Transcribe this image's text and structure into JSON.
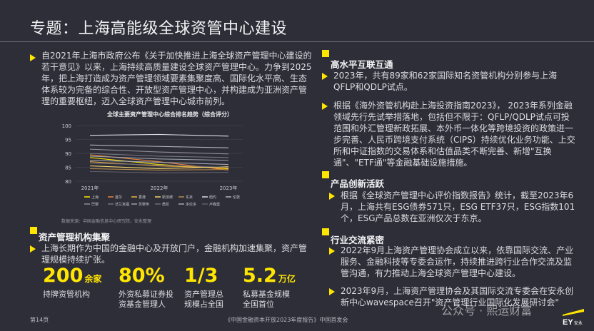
{
  "title": "专题：上海高能级全球资管中心建设",
  "intro": "自2021年上海市政府公布《关于加快推进上海全球资产管理中心建设的若干意见》以来，上海持续高质量建设全球资产管理中心。力争到2025年，把上海打造成为资产管理领域要素集聚度高、国际化水平高、生态体系较为完备的综合性、开放型资产管理中心，并构建成为亚洲资产管理的重要枢纽，迈入全球资产管理中心城市前列。",
  "cluster": {
    "heading": "资产管理机构集聚",
    "text": "上海长期作为中国的金融中心及开放门户，金融机构加速集聚，资产管理规模持续扩张。",
    "stats": [
      {
        "num": "200",
        "unit": "余家",
        "label": "持牌资管机构"
      },
      {
        "num": "80%",
        "unit": "",
        "label": "外资私募证券投资基金管理人"
      },
      {
        "num": "1/3",
        "unit": "",
        "label": "资产管理总规模占全国"
      },
      {
        "num": "5.2",
        "unit": "万亿",
        "label": "私募基金规模全国首位"
      }
    ]
  },
  "connect": {
    "heading": "高水平互联互通",
    "p1": "2023年，共有89家和62家国际知名资管机构分别参与上海QFLP和QDLP试点。",
    "p2": "根据《海外资管机构赴上海投资指南2023》， 2023年系列金融领域先行先试举措落地，包括但不限于：QFLP/QDLP试点可投范围和外汇管理新政拓展、本外币一体化等跨境投资的政策进一步完善、人民币跨境支付系统（CIPS）持续优化业务功能、上交所和中证指数的交易体系和估值品类不断完善、新增\"互换通\"、\"ETF通\"等金融基础设施措施。"
  },
  "product": {
    "heading": "产品创新活跃",
    "p1": "根据《全球资产管理中心评价指数报告》统计，截至2023年6月，上海共有ESG债券571只，ESG ETF37只，ESG指数101个，ESG产品总数在亚洲仅次于东京。"
  },
  "exchange": {
    "heading": "行业交流紧密",
    "p1": "2022年9月上海资产管理协会成立以来，依靠国际交流、产业服务、金融科技等专委会运作，持续推进跨行业合作交流及监管沟通，有力推动上海全球资产管理中心建设。",
    "p2": "2023年9月，上海资产管理协会及其国际交流专委会在安永创新中心wavespace召开\"资产管理行业国际化发展研讨会\""
  },
  "chart_data": {
    "type": "line",
    "title": "全球主要资产管理中心综合排名趋势（综合评分）",
    "categories": [
      "2021年",
      "2022年",
      "2023年"
    ],
    "ylim": [
      80,
      100
    ],
    "yticks": [
      80,
      85,
      90,
      95,
      100
    ],
    "grid": true,
    "legend_position": "bottom",
    "series": [
      {
        "name": "上海",
        "color": "#ffe600",
        "values": [
          88.5,
          86.0,
          84.5
        ]
      },
      {
        "name": "首尔",
        "color": "#e8823a",
        "values": [
          89.5,
          87.0,
          84.0
        ]
      },
      {
        "name": "香港",
        "color": "#f2b23a",
        "values": [
          87.0,
          85.5,
          84.8
        ]
      },
      {
        "name": "新加坡",
        "color": "#f5d56e",
        "values": [
          85.5,
          84.5,
          85.2
        ]
      },
      {
        "name": "东京",
        "color": "#b58a4a",
        "values": [
          84.5,
          84.0,
          84.2
        ]
      },
      {
        "name": "纽约",
        "color": "#dcdce2",
        "values": [
          96.5,
          96.8,
          96.2
        ]
      },
      {
        "name": "伦敦",
        "color": "#b4b4bc",
        "values": [
          93.0,
          92.5,
          92.0
        ]
      },
      {
        "name": "巴黎",
        "color": "#8c8c96",
        "values": [
          91.5,
          90.5,
          89.8
        ]
      },
      {
        "name": "法兰克福",
        "color": "#747480",
        "values": [
          90.0,
          89.0,
          88.5
        ]
      },
      {
        "name": "苏黎世",
        "color": "#9aa0aa",
        "values": [
          89.0,
          88.0,
          87.5
        ]
      },
      {
        "name": "悉尼",
        "color": "#6c6c78",
        "values": [
          86.5,
          85.8,
          85.0
        ]
      },
      {
        "name": "多伦多",
        "color": "#a6a6b0",
        "values": [
          87.5,
          86.8,
          86.0
        ]
      },
      {
        "name": "卢森堡",
        "color": "#5e5e6a",
        "values": [
          83.5,
          83.0,
          83.2
        ]
      }
    ],
    "source": "数据来源：中国金融信息中心研究院，安永整理"
  },
  "footer": {
    "page": "第14页",
    "report": "《中国金融资本开放2023年度报告》中国首发会"
  },
  "watermark": "公众号 · 熙运财富",
  "logo_text": "EY 安永",
  "colors": {
    "accent": "#ffe600",
    "background": "#2e2e38"
  }
}
